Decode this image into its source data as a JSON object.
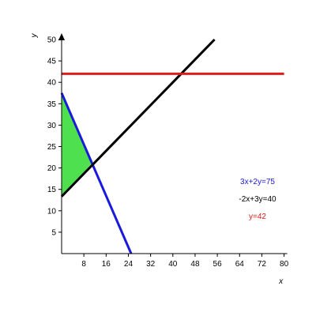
{
  "chart_data": {
    "type": "line",
    "xlabel": "x",
    "ylabel": "y",
    "xlim": [
      0,
      80
    ],
    "ylim": [
      0,
      50
    ],
    "x_ticks": [
      8,
      16,
      24,
      32,
      40,
      48,
      56,
      64,
      72,
      80
    ],
    "y_ticks": [
      5,
      10,
      15,
      20,
      25,
      30,
      35,
      40,
      45,
      50
    ],
    "series": [
      {
        "name": "3x+2y=75",
        "color": "#1a1adc",
        "points": [
          [
            0,
            37.5
          ],
          [
            25,
            0
          ]
        ]
      },
      {
        "name": "-2x+3y=40",
        "color": "#000000",
        "points": [
          [
            0,
            13.33
          ],
          [
            55,
            50
          ]
        ]
      },
      {
        "name": "y=42",
        "color": "#e01b1b",
        "points": [
          [
            0,
            42
          ],
          [
            80,
            42
          ]
        ]
      }
    ],
    "shaded_region": {
      "color": "#4fe04f",
      "vertices": [
        [
          0,
          13.33
        ],
        [
          0,
          37.5
        ],
        [
          10.9,
          21.1
        ]
      ]
    },
    "legend_position": "right"
  }
}
